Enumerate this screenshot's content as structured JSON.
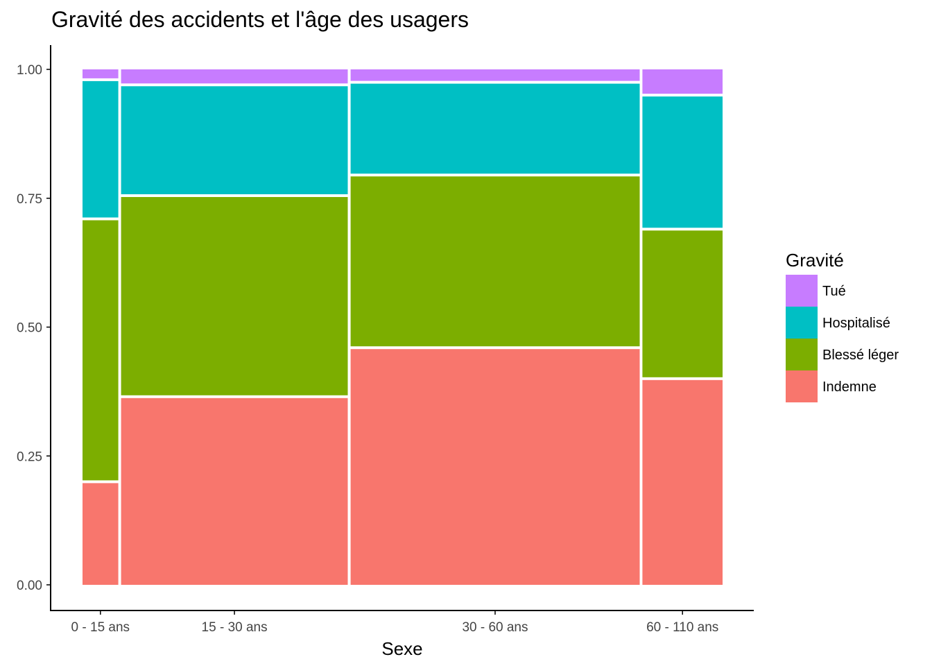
{
  "chart_data": {
    "type": "mosaic",
    "title": "Gravité des accidents et l'âge des usagers",
    "xlabel": "Sexe",
    "ylabel": "",
    "ylim": [
      0,
      1
    ],
    "yticks": [
      "0.00",
      "0.25",
      "0.50",
      "0.75",
      "1.00"
    ],
    "grid": false,
    "legend_title": "Gravité",
    "legend_position": "right",
    "categories": [
      "0  -  15 ans",
      "15  -  30 ans",
      "30  -  60 ans",
      "60  -  110 ans"
    ],
    "category_shares": [
      0.06,
      0.357,
      0.454,
      0.129
    ],
    "series": [
      {
        "name": "Indemne",
        "color": "#F8766D",
        "values": [
          0.2,
          0.365,
          0.46,
          0.4
        ]
      },
      {
        "name": "Blessé léger",
        "color": "#7CAE00",
        "values": [
          0.51,
          0.39,
          0.335,
          0.29
        ]
      },
      {
        "name": "Hospitalisé",
        "color": "#00BFC4",
        "values": [
          0.27,
          0.215,
          0.18,
          0.26
        ]
      },
      {
        "name": "Tué",
        "color": "#C77CFF",
        "values": [
          0.02,
          0.03,
          0.025,
          0.05
        ]
      }
    ],
    "legend_order": [
      "Tué",
      "Hospitalisé",
      "Blessé léger",
      "Indemne"
    ]
  }
}
